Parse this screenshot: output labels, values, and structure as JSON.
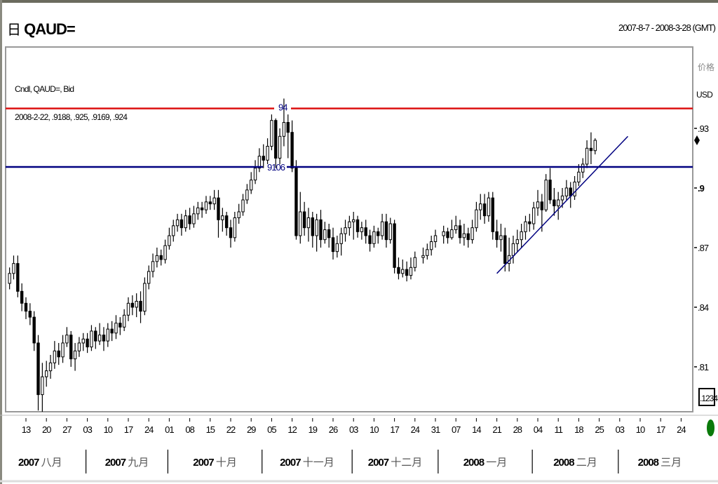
{
  "header": {
    "symbol_icon": "grid-icon",
    "symbol": "QAUD=",
    "date_range": "2007-8-7 - 2008-3-28 (GMT)"
  },
  "legend": {
    "series": "Cndl, QAUD=, Bid",
    "last_bar": "2008-2-22, .9188, .925, .9169, .924"
  },
  "axis": {
    "price_label": "价格",
    "currency": "USD",
    "button": ".1234"
  },
  "colors": {
    "resistance": "#dd1111",
    "support": "#000080",
    "trendline": "#000080",
    "up_candle": "#ffffff",
    "down_candle": "#000000",
    "status": "#0a7a0a"
  },
  "chart_data": {
    "type": "candlestick",
    "ylim": [
      0.788,
      0.972
    ],
    "y_ticks": [
      {
        "v": 0.93,
        "label": ".93"
      },
      {
        "v": 0.9,
        "label": ".9"
      },
      {
        "v": 0.87,
        "label": ".87"
      },
      {
        "v": 0.84,
        "label": ".84"
      },
      {
        "v": 0.81,
        "label": ".81"
      }
    ],
    "x_ticks": [
      {
        "date": "2007-08-13",
        "label": "13"
      },
      {
        "date": "2007-08-20",
        "label": "20"
      },
      {
        "date": "2007-08-27",
        "label": "27"
      },
      {
        "date": "2007-09-03",
        "label": "03"
      },
      {
        "date": "2007-09-10",
        "label": "10"
      },
      {
        "date": "2007-09-17",
        "label": "17"
      },
      {
        "date": "2007-09-24",
        "label": "24"
      },
      {
        "date": "2007-10-01",
        "label": "01"
      },
      {
        "date": "2007-10-08",
        "label": "08"
      },
      {
        "date": "2007-10-15",
        "label": "15"
      },
      {
        "date": "2007-10-22",
        "label": "22"
      },
      {
        "date": "2007-10-29",
        "label": "29"
      },
      {
        "date": "2007-11-05",
        "label": "05"
      },
      {
        "date": "2007-11-12",
        "label": "12"
      },
      {
        "date": "2007-11-19",
        "label": "19"
      },
      {
        "date": "2007-11-26",
        "label": "26"
      },
      {
        "date": "2007-12-03",
        "label": "03"
      },
      {
        "date": "2007-12-10",
        "label": "10"
      },
      {
        "date": "2007-12-17",
        "label": "17"
      },
      {
        "date": "2007-12-24",
        "label": "24"
      },
      {
        "date": "2007-12-31",
        "label": "31"
      },
      {
        "date": "2008-01-07",
        "label": "07"
      },
      {
        "date": "2008-01-14",
        "label": "14"
      },
      {
        "date": "2008-01-21",
        "label": "21"
      },
      {
        "date": "2008-01-28",
        "label": "28"
      },
      {
        "date": "2008-02-04",
        "label": "04"
      },
      {
        "date": "2008-02-11",
        "label": "11"
      },
      {
        "date": "2008-02-18",
        "label": "18"
      },
      {
        "date": "2008-02-25",
        "label": "25"
      },
      {
        "date": "2008-03-03",
        "label": "03"
      },
      {
        "date": "2008-03-10",
        "label": "10"
      },
      {
        "date": "2008-03-17",
        "label": "17"
      },
      {
        "date": "2008-03-24",
        "label": "24"
      }
    ],
    "months": [
      {
        "year": "2007",
        "month": "八月",
        "start": "2007-08-01"
      },
      {
        "year": "2007",
        "month": "九月",
        "start": "2007-09-01"
      },
      {
        "year": "2007",
        "month": "十月",
        "start": "2007-10-01"
      },
      {
        "year": "2007",
        "month": "十一月",
        "start": "2007-11-01"
      },
      {
        "year": "2007",
        "month": "十二月",
        "start": "2007-12-01"
      },
      {
        "year": "2008",
        "month": "一月",
        "start": "2008-01-01"
      },
      {
        "year": "2008",
        "month": "二月",
        "start": "2008-02-01"
      },
      {
        "year": "2008",
        "month": "三月",
        "start": "2008-03-01"
      }
    ],
    "hlines": [
      {
        "value": 0.94,
        "label": "94",
        "color": "#dd1111"
      },
      {
        "value": 0.9106,
        "label": "9106",
        "color": "#000080"
      }
    ],
    "trendline": {
      "from": [
        "2008-01-21",
        0.857
      ],
      "to": [
        "2008-03-05",
        0.926
      ]
    },
    "current_price": 0.924,
    "bars_columns": [
      "date",
      "open",
      "high",
      "low",
      "close"
    ],
    "bars": [
      [
        "2007-08-07",
        0.852,
        0.86,
        0.849,
        0.857
      ],
      [
        "2007-08-08",
        0.857,
        0.866,
        0.854,
        0.862
      ],
      [
        "2007-08-09",
        0.862,
        0.866,
        0.845,
        0.848
      ],
      [
        "2007-08-10",
        0.848,
        0.852,
        0.838,
        0.842
      ],
      [
        "2007-08-13",
        0.842,
        0.845,
        0.834,
        0.838
      ],
      [
        "2007-08-14",
        0.838,
        0.842,
        0.831,
        0.835
      ],
      [
        "2007-08-15",
        0.835,
        0.838,
        0.818,
        0.822
      ],
      [
        "2007-08-16",
        0.822,
        0.826,
        0.788,
        0.796
      ],
      [
        "2007-08-17",
        0.796,
        0.812,
        0.785,
        0.805
      ],
      [
        "2007-08-20",
        0.805,
        0.813,
        0.8,
        0.808
      ],
      [
        "2007-08-21",
        0.808,
        0.816,
        0.804,
        0.812
      ],
      [
        "2007-08-22",
        0.812,
        0.823,
        0.809,
        0.818
      ],
      [
        "2007-08-23",
        0.818,
        0.822,
        0.811,
        0.815
      ],
      [
        "2007-08-24",
        0.815,
        0.826,
        0.812,
        0.822
      ],
      [
        "2007-08-27",
        0.822,
        0.83,
        0.82,
        0.826
      ],
      [
        "2007-08-28",
        0.826,
        0.828,
        0.81,
        0.814
      ],
      [
        "2007-08-29",
        0.814,
        0.822,
        0.808,
        0.818
      ],
      [
        "2007-08-30",
        0.818,
        0.825,
        0.815,
        0.822
      ],
      [
        "2007-08-31",
        0.822,
        0.827,
        0.818,
        0.824
      ],
      [
        "2007-09-03",
        0.824,
        0.827,
        0.817,
        0.82
      ],
      [
        "2007-09-04",
        0.82,
        0.831,
        0.818,
        0.828
      ],
      [
        "2007-09-05",
        0.828,
        0.83,
        0.819,
        0.823
      ],
      [
        "2007-09-06",
        0.823,
        0.832,
        0.821,
        0.826
      ],
      [
        "2007-09-07",
        0.826,
        0.83,
        0.818,
        0.823
      ],
      [
        "2007-09-10",
        0.823,
        0.832,
        0.82,
        0.829
      ],
      [
        "2007-09-11",
        0.829,
        0.833,
        0.823,
        0.827
      ],
      [
        "2007-09-12",
        0.827,
        0.836,
        0.824,
        0.832
      ],
      [
        "2007-09-13",
        0.832,
        0.835,
        0.826,
        0.83
      ],
      [
        "2007-09-14",
        0.83,
        0.839,
        0.828,
        0.836
      ],
      [
        "2007-09-17",
        0.836,
        0.845,
        0.833,
        0.842
      ],
      [
        "2007-09-18",
        0.842,
        0.846,
        0.836,
        0.84
      ],
      [
        "2007-09-19",
        0.84,
        0.847,
        0.835,
        0.843
      ],
      [
        "2007-09-20",
        0.843,
        0.848,
        0.832,
        0.838
      ],
      [
        "2007-09-21",
        0.838,
        0.855,
        0.836,
        0.852
      ],
      [
        "2007-09-24",
        0.852,
        0.861,
        0.849,
        0.858
      ],
      [
        "2007-09-25",
        0.858,
        0.867,
        0.855,
        0.863
      ],
      [
        "2007-09-26",
        0.863,
        0.87,
        0.86,
        0.866
      ],
      [
        "2007-09-27",
        0.866,
        0.869,
        0.861,
        0.864
      ],
      [
        "2007-09-28",
        0.864,
        0.874,
        0.862,
        0.871
      ],
      [
        "2007-10-01",
        0.871,
        0.88,
        0.869,
        0.876
      ],
      [
        "2007-10-02",
        0.876,
        0.884,
        0.873,
        0.881
      ],
      [
        "2007-10-03",
        0.881,
        0.887,
        0.878,
        0.884
      ],
      [
        "2007-10-04",
        0.884,
        0.887,
        0.876,
        0.88
      ],
      [
        "2007-10-05",
        0.88,
        0.889,
        0.878,
        0.886
      ],
      [
        "2007-10-08",
        0.886,
        0.89,
        0.879,
        0.882
      ],
      [
        "2007-10-09",
        0.882,
        0.891,
        0.88,
        0.887
      ],
      [
        "2007-10-10",
        0.887,
        0.893,
        0.884,
        0.89
      ],
      [
        "2007-10-11",
        0.89,
        0.893,
        0.885,
        0.889
      ],
      [
        "2007-10-12",
        0.889,
        0.896,
        0.887,
        0.893
      ],
      [
        "2007-10-15",
        0.893,
        0.896,
        0.889,
        0.892
      ],
      [
        "2007-10-16",
        0.892,
        0.899,
        0.889,
        0.895
      ],
      [
        "2007-10-17",
        0.895,
        0.899,
        0.875,
        0.884
      ],
      [
        "2007-10-18",
        0.884,
        0.89,
        0.878,
        0.886
      ],
      [
        "2007-10-19",
        0.886,
        0.888,
        0.876,
        0.88
      ],
      [
        "2007-10-22",
        0.88,
        0.884,
        0.87,
        0.875
      ],
      [
        "2007-10-23",
        0.875,
        0.888,
        0.873,
        0.885
      ],
      [
        "2007-10-24",
        0.885,
        0.892,
        0.882,
        0.888
      ],
      [
        "2007-10-25",
        0.888,
        0.897,
        0.886,
        0.894
      ],
      [
        "2007-10-26",
        0.894,
        0.902,
        0.892,
        0.899
      ],
      [
        "2007-10-29",
        0.899,
        0.908,
        0.897,
        0.904
      ],
      [
        "2007-10-30",
        0.904,
        0.914,
        0.902,
        0.91
      ],
      [
        "2007-10-31",
        0.91,
        0.92,
        0.908,
        0.916
      ],
      [
        "2007-11-01",
        0.916,
        0.922,
        0.91,
        0.914
      ],
      [
        "2007-11-02",
        0.914,
        0.925,
        0.912,
        0.921
      ],
      [
        "2007-11-05",
        0.921,
        0.937,
        0.919,
        0.934
      ],
      [
        "2007-11-06",
        0.934,
        0.935,
        0.91,
        0.915
      ],
      [
        "2007-11-07",
        0.915,
        0.93,
        0.912,
        0.926
      ],
      [
        "2007-11-08",
        0.926,
        0.945,
        0.921,
        0.933
      ],
      [
        "2007-11-09",
        0.933,
        0.937,
        0.915,
        0.928
      ],
      [
        "2007-11-12",
        0.928,
        0.934,
        0.908,
        0.91
      ],
      [
        "2007-11-13",
        0.91,
        0.914,
        0.874,
        0.876
      ],
      [
        "2007-11-14",
        0.876,
        0.898,
        0.872,
        0.888
      ],
      [
        "2007-11-15",
        0.888,
        0.893,
        0.876,
        0.88
      ],
      [
        "2007-11-16",
        0.88,
        0.89,
        0.873,
        0.885
      ],
      [
        "2007-11-19",
        0.885,
        0.888,
        0.87,
        0.876
      ],
      [
        "2007-11-20",
        0.876,
        0.887,
        0.868,
        0.884
      ],
      [
        "2007-11-21",
        0.884,
        0.889,
        0.87,
        0.874
      ],
      [
        "2007-11-22",
        0.874,
        0.883,
        0.872,
        0.879
      ],
      [
        "2007-11-23",
        0.879,
        0.882,
        0.87,
        0.875
      ],
      [
        "2007-11-26",
        0.875,
        0.88,
        0.864,
        0.868
      ],
      [
        "2007-11-27",
        0.868,
        0.876,
        0.865,
        0.872
      ],
      [
        "2007-11-28",
        0.872,
        0.88,
        0.866,
        0.877
      ],
      [
        "2007-11-29",
        0.877,
        0.884,
        0.873,
        0.88
      ],
      [
        "2007-11-30",
        0.88,
        0.886,
        0.876,
        0.883
      ],
      [
        "2007-12-03",
        0.883,
        0.888,
        0.874,
        0.884
      ],
      [
        "2007-12-04",
        0.884,
        0.886,
        0.875,
        0.878
      ],
      [
        "2007-12-05",
        0.878,
        0.883,
        0.874,
        0.88
      ],
      [
        "2007-12-06",
        0.88,
        0.884,
        0.872,
        0.876
      ],
      [
        "2007-12-07",
        0.876,
        0.879,
        0.868,
        0.872
      ],
      [
        "2007-12-10",
        0.872,
        0.881,
        0.87,
        0.878
      ],
      [
        "2007-12-11",
        0.878,
        0.88,
        0.872,
        0.876
      ],
      [
        "2007-12-12",
        0.876,
        0.887,
        0.874,
        0.883
      ],
      [
        "2007-12-13",
        0.883,
        0.887,
        0.87,
        0.874
      ],
      [
        "2007-12-14",
        0.874,
        0.885,
        0.872,
        0.882
      ],
      [
        "2007-12-17",
        0.882,
        0.884,
        0.857,
        0.86
      ],
      [
        "2007-12-18",
        0.86,
        0.865,
        0.854,
        0.857
      ],
      [
        "2007-12-19",
        0.857,
        0.864,
        0.855,
        0.859
      ],
      [
        "2007-12-20",
        0.859,
        0.863,
        0.853,
        0.856
      ],
      [
        "2007-12-21",
        0.856,
        0.865,
        0.854,
        0.86
      ],
      [
        "2007-12-24",
        0.86,
        0.868,
        0.858,
        0.865
      ],
      [
        "2007-12-26",
        0.865,
        0.87,
        0.862,
        0.866
      ],
      [
        "2007-12-27",
        0.866,
        0.872,
        0.864,
        0.869
      ],
      [
        "2007-12-28",
        0.869,
        0.876,
        0.866,
        0.873
      ],
      [
        "2007-12-31",
        0.873,
        0.879,
        0.87,
        0.876
      ],
      [
        "2008-01-02",
        0.876,
        0.881,
        0.872,
        0.878
      ],
      [
        "2008-01-03",
        0.878,
        0.88,
        0.872,
        0.875
      ],
      [
        "2008-01-04",
        0.875,
        0.884,
        0.874,
        0.879
      ],
      [
        "2008-01-07",
        0.879,
        0.886,
        0.877,
        0.881
      ],
      [
        "2008-01-08",
        0.881,
        0.884,
        0.872,
        0.875
      ],
      [
        "2008-01-09",
        0.875,
        0.882,
        0.871,
        0.877
      ],
      [
        "2008-01-10",
        0.877,
        0.88,
        0.87,
        0.874
      ],
      [
        "2008-01-11",
        0.874,
        0.884,
        0.872,
        0.88
      ],
      [
        "2008-01-14",
        0.88,
        0.893,
        0.878,
        0.889
      ],
      [
        "2008-01-15",
        0.889,
        0.897,
        0.884,
        0.892
      ],
      [
        "2008-01-16",
        0.892,
        0.897,
        0.882,
        0.886
      ],
      [
        "2008-01-17",
        0.886,
        0.898,
        0.883,
        0.895
      ],
      [
        "2008-01-18",
        0.895,
        0.898,
        0.874,
        0.878
      ],
      [
        "2008-01-21",
        0.878,
        0.884,
        0.87,
        0.874
      ],
      [
        "2008-01-22",
        0.874,
        0.882,
        0.868,
        0.876
      ],
      [
        "2008-01-23",
        0.876,
        0.88,
        0.858,
        0.862
      ],
      [
        "2008-01-24",
        0.862,
        0.875,
        0.858,
        0.866
      ],
      [
        "2008-01-25",
        0.866,
        0.876,
        0.862,
        0.872
      ],
      [
        "2008-01-28",
        0.872,
        0.879,
        0.868,
        0.874
      ],
      [
        "2008-01-29",
        0.874,
        0.882,
        0.87,
        0.878
      ],
      [
        "2008-01-30",
        0.878,
        0.886,
        0.874,
        0.883
      ],
      [
        "2008-01-31",
        0.883,
        0.887,
        0.878,
        0.882
      ],
      [
        "2008-02-01",
        0.882,
        0.893,
        0.879,
        0.89
      ],
      [
        "2008-02-04",
        0.89,
        0.899,
        0.886,
        0.893
      ],
      [
        "2008-02-05",
        0.893,
        0.897,
        0.878,
        0.889
      ],
      [
        "2008-02-06",
        0.889,
        0.907,
        0.888,
        0.904
      ],
      [
        "2008-02-07",
        0.904,
        0.91,
        0.892,
        0.894
      ],
      [
        "2008-02-08",
        0.894,
        0.9,
        0.886,
        0.891
      ],
      [
        "2008-02-11",
        0.891,
        0.898,
        0.884,
        0.894
      ],
      [
        "2008-02-12",
        0.894,
        0.9,
        0.89,
        0.896
      ],
      [
        "2008-02-13",
        0.896,
        0.904,
        0.894,
        0.9
      ],
      [
        "2008-02-14",
        0.9,
        0.903,
        0.89,
        0.896
      ],
      [
        "2008-02-15",
        0.896,
        0.906,
        0.894,
        0.903
      ],
      [
        "2008-02-18",
        0.903,
        0.912,
        0.901,
        0.908
      ],
      [
        "2008-02-19",
        0.908,
        0.915,
        0.905,
        0.912
      ],
      [
        "2008-02-20",
        0.912,
        0.924,
        0.91,
        0.92
      ],
      [
        "2008-02-21",
        0.92,
        0.928,
        0.912,
        0.9188
      ],
      [
        "2008-02-22",
        0.9188,
        0.925,
        0.9169,
        0.924
      ]
    ]
  }
}
